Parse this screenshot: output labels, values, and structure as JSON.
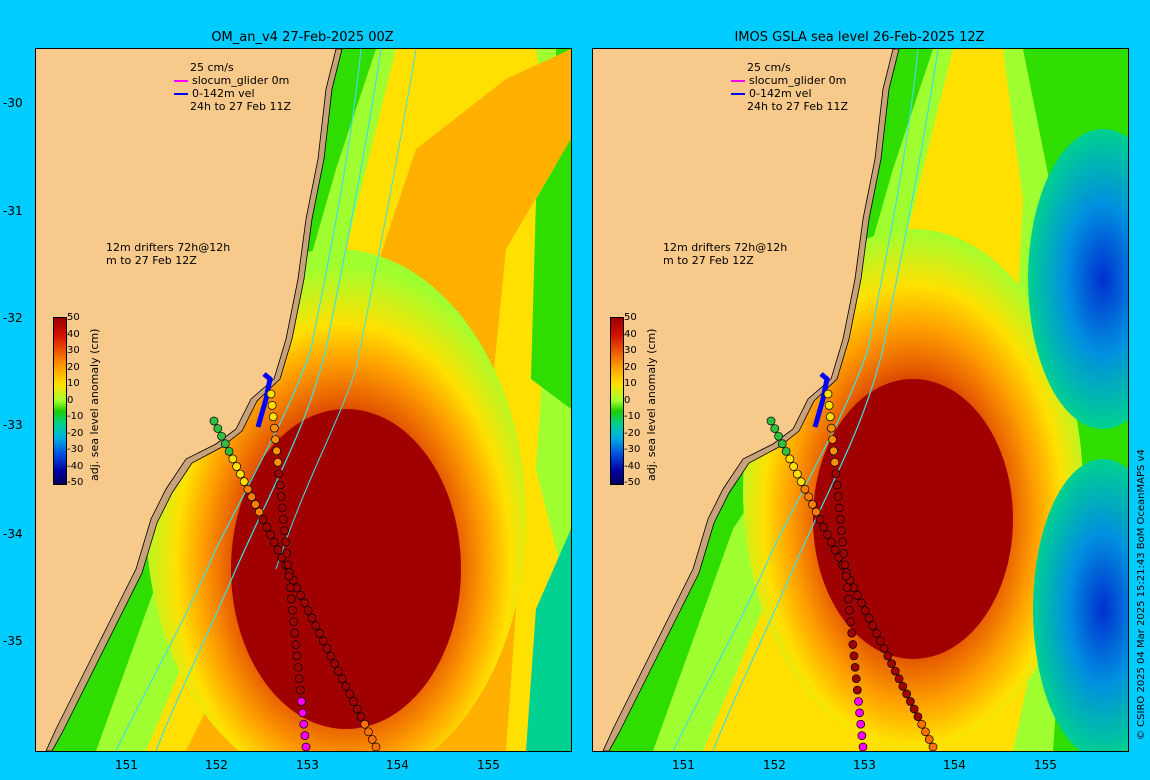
{
  "panels": [
    {
      "title": "OM_an_v4  27-Feb-2025 00Z",
      "legend": {
        "speed": "25 cm/s",
        "glider": "slocum_glider 0m",
        "vel": "0-142m vel",
        "period": "24h to 27 Feb 11Z"
      },
      "drifters": {
        "line1": "12m  drifters 72h@12h",
        "line2": "m  to 27 Feb 12Z"
      },
      "colorbar": {
        "label": "adj. sea level anomaly (cm)",
        "ticks": [
          "50",
          "40",
          "30",
          "20",
          "10",
          "0",
          "-10",
          "-20",
          "-30",
          "-40",
          "-50"
        ]
      }
    },
    {
      "title": "IMOS GSLA sea level  26-Feb-2025 12Z",
      "legend": {
        "speed": "25 cm/s",
        "glider": "slocum_glider 0m",
        "vel": "0-142m vel",
        "period": "24h to 27 Feb 11Z"
      },
      "drifters": {
        "line1": "12m  drifters 72h@12h",
        "line2": "m  to 27 Feb 12Z"
      },
      "colorbar": {
        "label": "adj. sea level anomaly (cm)",
        "ticks": [
          "50",
          "40",
          "30",
          "20",
          "10",
          "0",
          "-10",
          "-20",
          "-30",
          "-40",
          "-50"
        ]
      }
    }
  ],
  "lat_labels": [
    "-30",
    "-31",
    "-32",
    "-33",
    "-34",
    "-35"
  ],
  "lon_labels": [
    "151",
    "152",
    "153",
    "154",
    "155"
  ],
  "credit": "© CSIRO 2025  04 Mar 2025 15:21:43 BoM OceanMAPS v4",
  "colors": {
    "background": "#00ccff",
    "land": "#f7c98a",
    "coast": "#c8a27a",
    "glider": "#ff00ff",
    "vel": "#0000ff"
  }
}
